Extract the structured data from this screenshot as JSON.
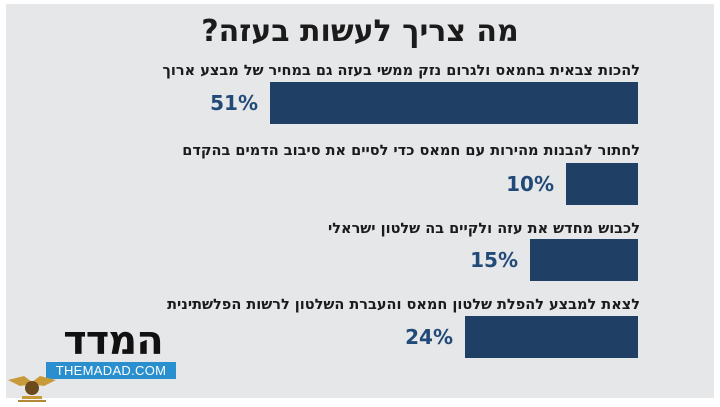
{
  "chart_data": {
    "type": "bar",
    "title": "מה צריך לעשות בעזה?",
    "categories": [
      "להכות צבאית בחמאס ולגרום נזק ממשי בעזה גם במחיר של מבצע ארוך",
      "לחתור להבנות מהירות עם חמאס כדי לסיים את סיבוב הדמים בהקדם",
      "לכבוש מחדש את עזה ולקיים בה שלטון ישראלי",
      "לצאת למבצע להפלת שלטון חמאס והעברת השלטון לרשות הפלשתינית"
    ],
    "values": [
      51,
      10,
      15,
      24
    ],
    "value_labels": [
      "51%",
      "10%",
      "15%",
      "24%"
    ],
    "bar_color": "#1f3f64",
    "value_color": "#214a78"
  },
  "logo": {
    "hebrew": "המדד",
    "english": "THEMADAD.COM"
  }
}
